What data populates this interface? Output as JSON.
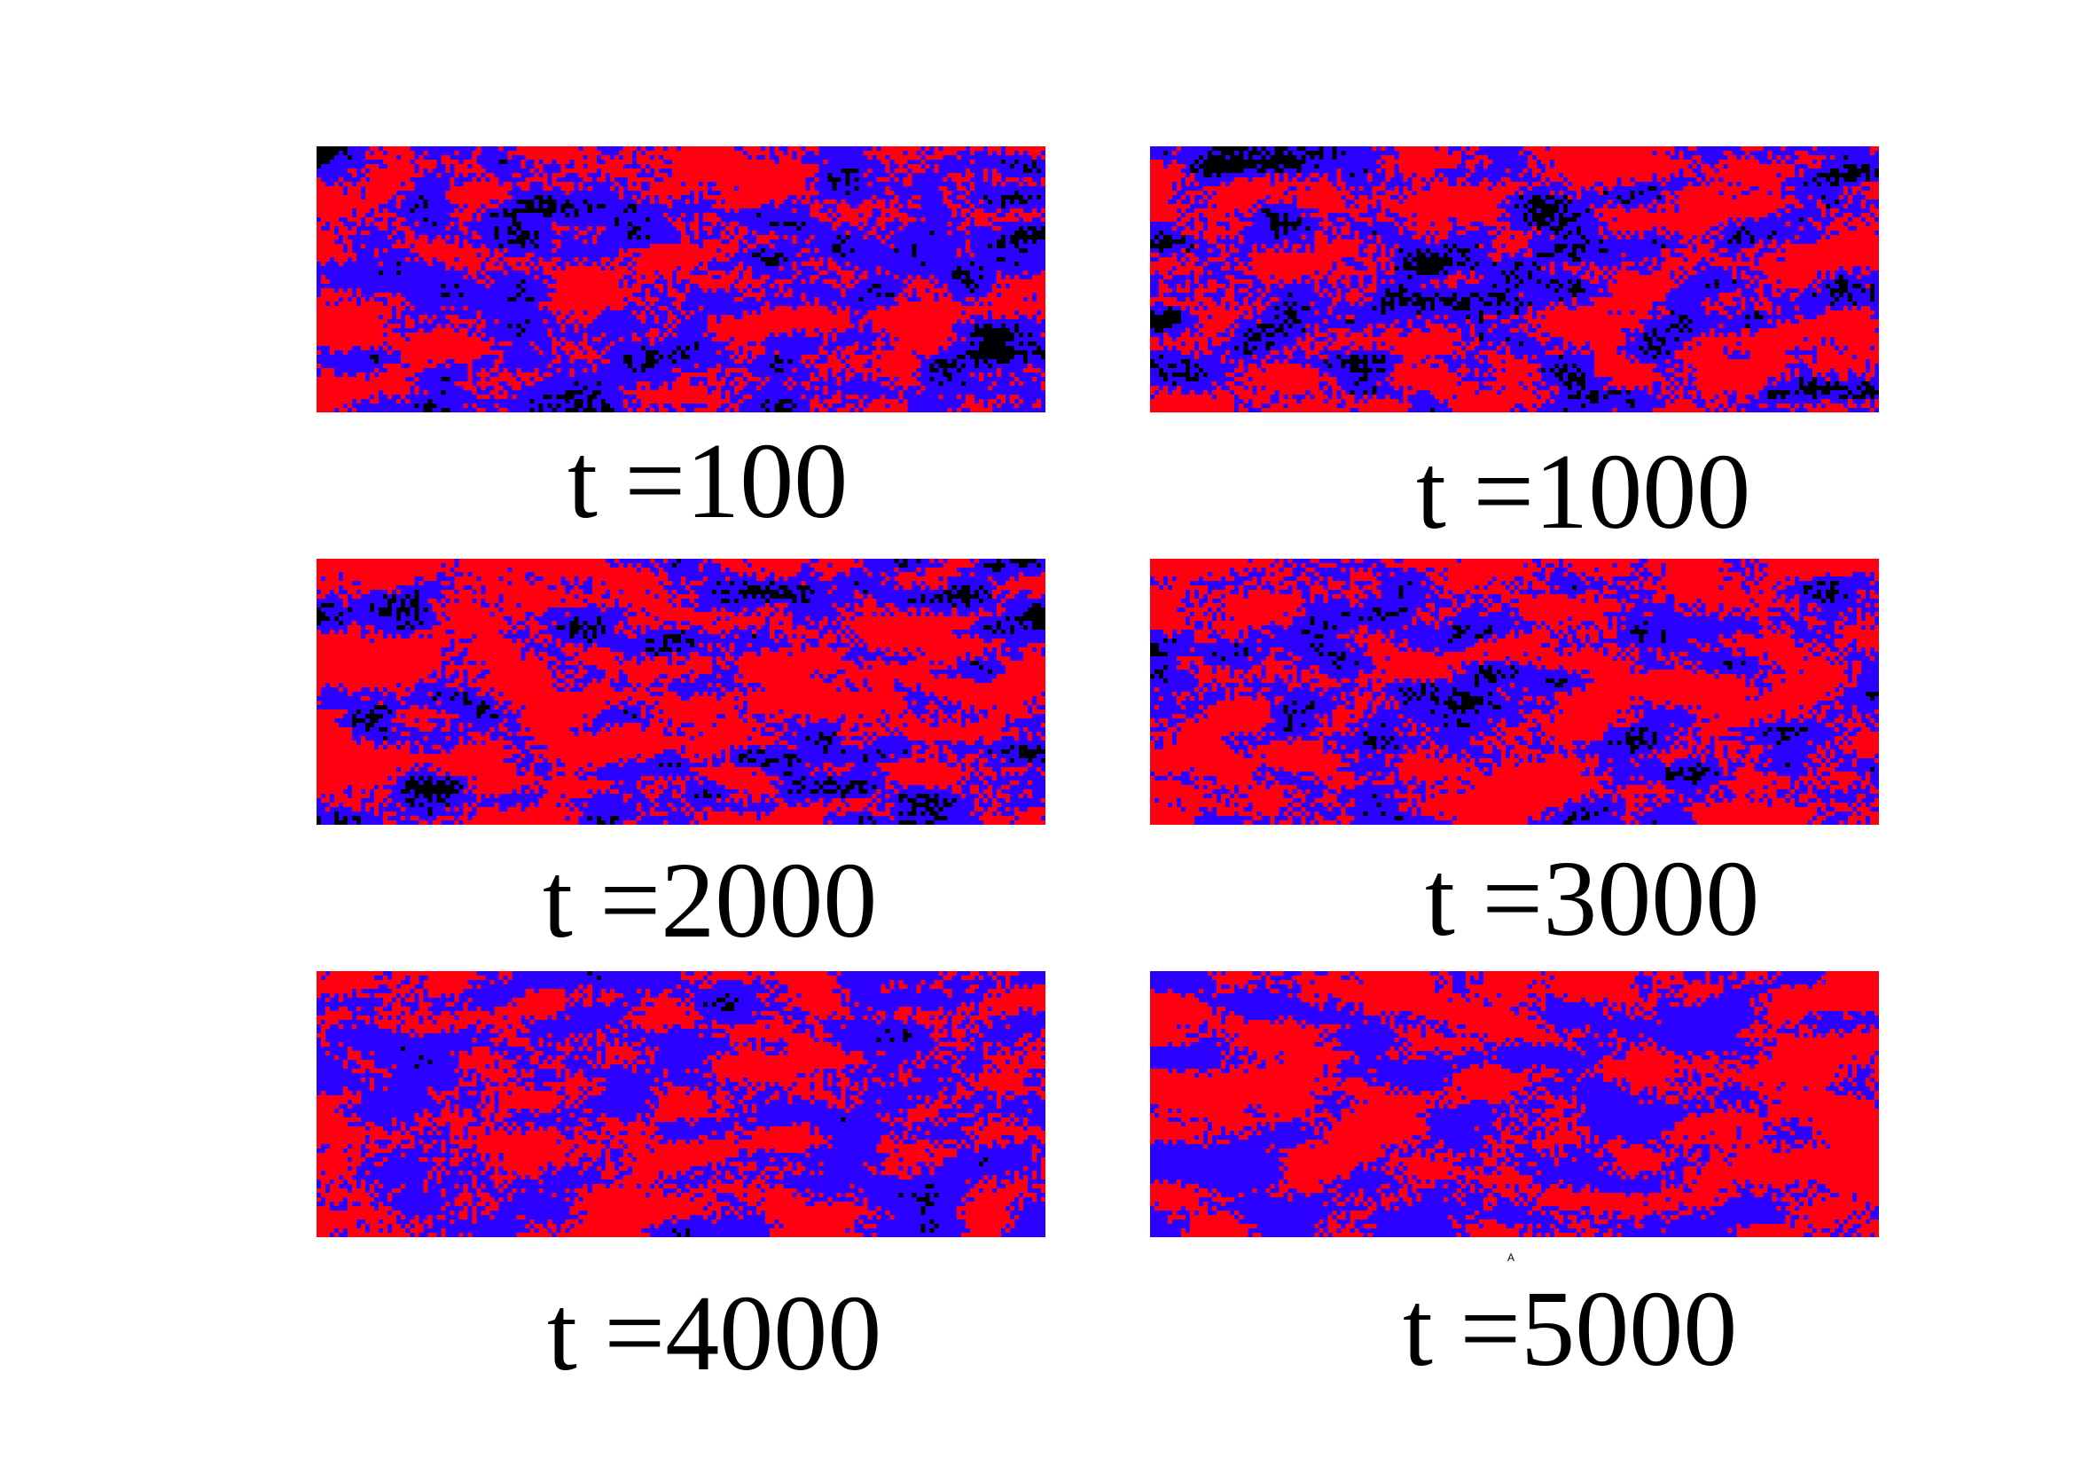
{
  "colors": {
    "state_a": "#ff0010",
    "state_b": "#2b00ff",
    "state_c": "#000000",
    "background": "#ffffff"
  },
  "panels": [
    {
      "label": "t =100",
      "time": 100,
      "fractions": {
        "state_b": 0.55,
        "state_a": 0.4,
        "state_c": 0.05
      }
    },
    {
      "label": "t =1000",
      "time": 1000,
      "fractions": {
        "state_b": 0.45,
        "state_a": 0.47,
        "state_c": 0.08
      }
    },
    {
      "label": "t =2000",
      "time": 2000,
      "fractions": {
        "state_b": 0.4,
        "state_a": 0.55,
        "state_c": 0.05
      }
    },
    {
      "label": "t =3000",
      "time": 3000,
      "fractions": {
        "state_b": 0.45,
        "state_a": 0.52,
        "state_c": 0.03
      }
    },
    {
      "label": "t =4000",
      "time": 4000,
      "fractions": {
        "state_b": 0.55,
        "state_a": 0.445,
        "state_c": 0.005
      }
    },
    {
      "label": "t =5000",
      "time": 5000,
      "fractions": {
        "state_b": 0.45,
        "state_a": 0.55,
        "state_c": 0.0
      }
    }
  ],
  "stray_mark": "A"
}
